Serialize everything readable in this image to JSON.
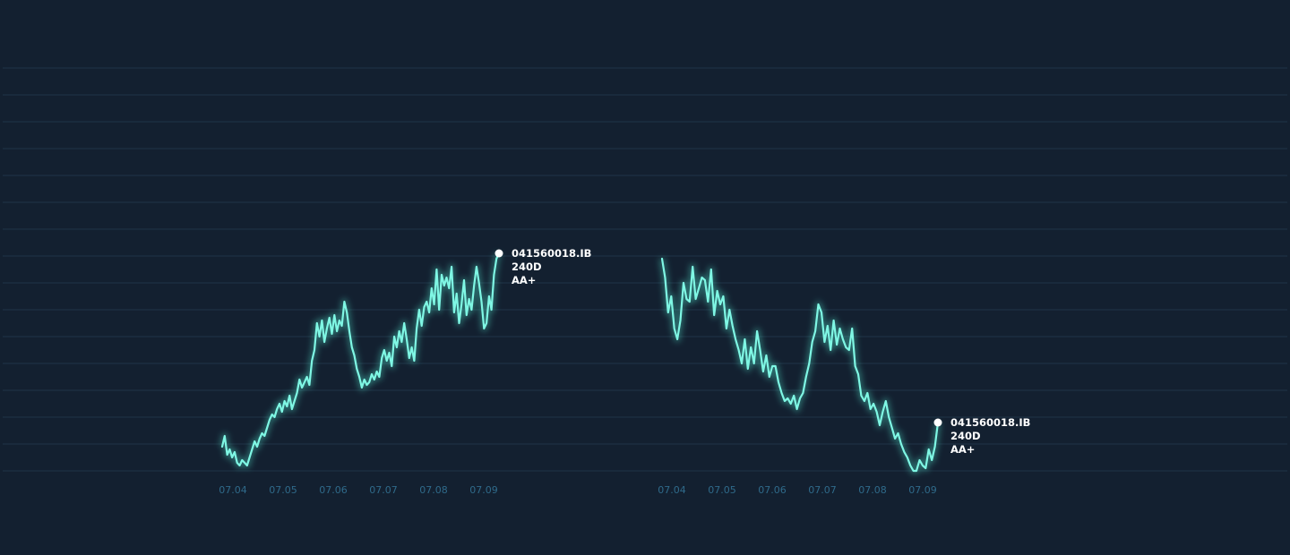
{
  "colors": {
    "background": "#132030",
    "grid": "#1f3447",
    "line": "#7ff7e4",
    "glow": "#55f0d8",
    "tick": "#2f6a8a",
    "label": "#ffffff"
  },
  "chart_data": [
    {
      "type": "line",
      "x_ticks": [
        "07.04",
        "07.05",
        "07.06",
        "07.07",
        "07.08",
        "07.09"
      ],
      "ylim": [
        0,
        15
      ],
      "grid": true,
      "end_label": [
        "041560018.IB",
        "240D",
        "AA+"
      ],
      "series": [
        {
          "values": [
            0.9,
            1.3,
            0.6,
            0.8,
            0.5,
            0.7,
            0.3,
            0.2,
            0.4,
            0.3,
            0.2,
            0.5,
            0.8,
            1.1,
            0.9,
            1.2,
            1.4,
            1.3,
            1.6,
            1.9,
            2.1,
            2.0,
            2.3,
            2.5,
            2.2,
            2.6,
            2.4,
            2.8,
            2.3,
            2.6,
            2.9,
            3.4,
            3.1,
            3.3,
            3.5,
            3.2,
            4.1,
            4.5,
            5.5,
            5.0,
            5.6,
            4.8,
            5.3,
            5.7,
            5.1,
            5.8,
            5.2,
            5.6,
            5.4,
            6.3,
            5.9,
            5.2,
            4.6,
            4.3,
            3.8,
            3.5,
            3.1,
            3.4,
            3.2,
            3.3,
            3.6,
            3.4,
            3.7,
            3.5,
            4.2,
            4.5,
            4.1,
            4.4,
            3.9,
            5.0,
            4.6,
            5.2,
            4.8,
            5.5,
            4.9,
            4.2,
            4.6,
            4.1,
            5.3,
            6.0,
            5.4,
            6.1,
            6.3,
            5.9,
            6.8,
            6.2,
            7.5,
            6.0,
            7.3,
            6.9,
            7.2,
            6.8,
            7.6,
            5.9,
            6.6,
            5.5,
            6.2,
            7.1,
            5.8,
            6.4,
            6.0,
            6.9,
            7.6,
            7.0,
            6.3,
            5.3,
            5.5,
            6.5,
            6.0,
            7.3,
            7.9,
            8.1
          ]
        }
      ]
    },
    {
      "type": "line",
      "x_ticks": [
        "07.04",
        "07.05",
        "07.06",
        "07.07",
        "07.08",
        "07.09"
      ],
      "ylim": [
        0,
        15
      ],
      "grid": true,
      "end_label": [
        "041560018.IB",
        "240D",
        "AA+"
      ],
      "series": [
        {
          "values": [
            7.9,
            7.2,
            5.9,
            6.5,
            5.3,
            4.9,
            5.6,
            7.0,
            6.4,
            6.3,
            7.6,
            6.4,
            6.8,
            7.2,
            7.1,
            6.3,
            7.5,
            5.8,
            6.7,
            6.2,
            6.5,
            5.3,
            6.0,
            5.4,
            4.9,
            4.5,
            4.0,
            4.9,
            3.8,
            4.6,
            4.0,
            5.2,
            4.5,
            3.7,
            4.3,
            3.5,
            3.9,
            3.9,
            3.3,
            2.9,
            2.6,
            2.7,
            2.5,
            2.8,
            2.3,
            2.7,
            2.9,
            3.5,
            4.0,
            4.8,
            5.2,
            6.2,
            5.9,
            4.8,
            5.4,
            4.5,
            5.6,
            4.7,
            5.3,
            4.9,
            4.6,
            4.5,
            5.3,
            3.9,
            3.6,
            2.8,
            2.6,
            2.9,
            2.3,
            2.5,
            2.2,
            1.7,
            2.2,
            2.6,
            2.0,
            1.6,
            1.2,
            1.4,
            1.0,
            0.7,
            0.5,
            0.2,
            0.0,
            0.0,
            0.4,
            0.2,
            0.1,
            0.8,
            0.4,
            0.9,
            1.8
          ]
        }
      ]
    }
  ]
}
